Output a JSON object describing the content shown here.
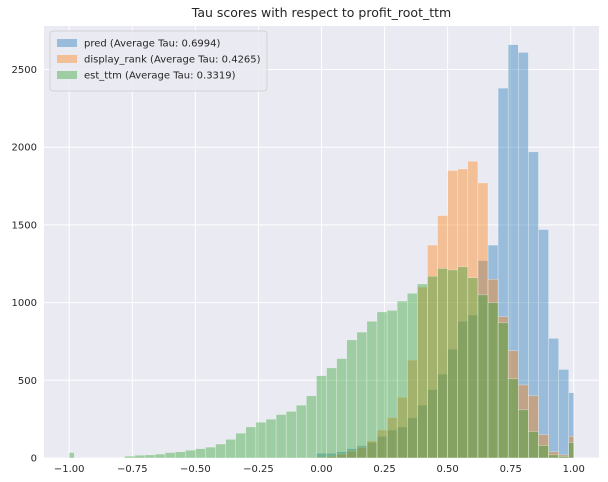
{
  "chart_data": {
    "type": "bar",
    "subtype": "overlaid-histogram",
    "title": "Tau scores with respect to profit_root_ttm",
    "xlabel": "",
    "ylabel": "",
    "xlim": [
      -1.1,
      1.1
    ],
    "ylim": [
      0,
      2780
    ],
    "grid": true,
    "legend_position": "top-left",
    "x_ticks": [
      -1.0,
      -0.75,
      -0.5,
      -0.25,
      0.0,
      0.25,
      0.5,
      0.75,
      1.0
    ],
    "x_tick_labels": [
      "−1.00",
      "−0.75",
      "−0.50",
      "−0.25",
      "0.00",
      "0.25",
      "0.50",
      "0.75",
      "1.00"
    ],
    "y_ticks": [
      0,
      500,
      1000,
      1500,
      2000,
      2500
    ],
    "y_tick_labels": [
      "0",
      "500",
      "1000",
      "1500",
      "2000",
      "2500"
    ],
    "bin_width": 0.04,
    "draw_order": [
      "pred",
      "display_rank",
      "est_ttm"
    ],
    "series": [
      {
        "name": "pred (Average Tau: 0.6994)",
        "color": "#1f77b4",
        "bins": [
          [
            -0.02,
            0.06,
            30
          ],
          [
            0.06,
            0.1,
            40
          ],
          [
            0.1,
            0.14,
            60
          ],
          [
            0.14,
            0.18,
            80
          ],
          [
            0.18,
            0.22,
            100
          ],
          [
            0.22,
            0.26,
            140
          ],
          [
            0.26,
            0.3,
            180
          ],
          [
            0.3,
            0.34,
            200
          ],
          [
            0.34,
            0.38,
            260
          ],
          [
            0.38,
            0.42,
            340
          ],
          [
            0.42,
            0.46,
            440
          ],
          [
            0.46,
            0.5,
            540
          ],
          [
            0.5,
            0.54,
            700
          ],
          [
            0.54,
            0.58,
            880
          ],
          [
            0.58,
            0.62,
            920
          ],
          [
            0.62,
            0.66,
            1270
          ],
          [
            0.66,
            0.7,
            1370
          ],
          [
            0.7,
            0.74,
            2380
          ],
          [
            0.74,
            0.78,
            2660
          ],
          [
            0.78,
            0.82,
            2610
          ],
          [
            0.82,
            0.86,
            1970
          ],
          [
            0.86,
            0.9,
            1470
          ],
          [
            0.9,
            0.94,
            770
          ],
          [
            0.94,
            0.98,
            570
          ],
          [
            0.98,
            1.0,
            420
          ]
        ]
      },
      {
        "name": "display_rank (Average Tau: 0.4265)",
        "color": "#ff7f0e",
        "bins": [
          [
            -0.02,
            0.02,
            5
          ],
          [
            0.02,
            0.06,
            12
          ],
          [
            0.06,
            0.1,
            25
          ],
          [
            0.1,
            0.14,
            45
          ],
          [
            0.14,
            0.18,
            70
          ],
          [
            0.18,
            0.22,
            110
          ],
          [
            0.22,
            0.26,
            180
          ],
          [
            0.26,
            0.3,
            260
          ],
          [
            0.3,
            0.34,
            390
          ],
          [
            0.34,
            0.38,
            630
          ],
          [
            0.38,
            0.42,
            1100
          ],
          [
            0.42,
            0.46,
            1370
          ],
          [
            0.46,
            0.5,
            1560
          ],
          [
            0.5,
            0.54,
            1850
          ],
          [
            0.54,
            0.58,
            1860
          ],
          [
            0.58,
            0.62,
            1910
          ],
          [
            0.62,
            0.66,
            1770
          ],
          [
            0.66,
            0.7,
            1150
          ],
          [
            0.7,
            0.74,
            910
          ],
          [
            0.74,
            0.78,
            690
          ],
          [
            0.78,
            0.82,
            470
          ],
          [
            0.82,
            0.86,
            400
          ],
          [
            0.86,
            0.9,
            150
          ],
          [
            0.9,
            0.94,
            40
          ],
          [
            0.94,
            0.98,
            20
          ],
          [
            0.98,
            1.0,
            140
          ]
        ]
      },
      {
        "name": "est_ttm (Average Tau: 0.3319)",
        "color": "#2ca02c",
        "bins": [
          [
            -1.0,
            -0.98,
            35
          ],
          [
            -0.78,
            -0.74,
            12
          ],
          [
            -0.74,
            -0.7,
            18
          ],
          [
            -0.7,
            -0.66,
            20
          ],
          [
            -0.66,
            -0.62,
            25
          ],
          [
            -0.62,
            -0.58,
            35
          ],
          [
            -0.58,
            -0.54,
            40
          ],
          [
            -0.54,
            -0.5,
            50
          ],
          [
            -0.5,
            -0.46,
            60
          ],
          [
            -0.46,
            -0.42,
            70
          ],
          [
            -0.42,
            -0.38,
            90
          ],
          [
            -0.38,
            -0.34,
            120
          ],
          [
            -0.34,
            -0.3,
            160
          ],
          [
            -0.3,
            -0.26,
            200
          ],
          [
            -0.26,
            -0.22,
            230
          ],
          [
            -0.22,
            -0.18,
            250
          ],
          [
            -0.18,
            -0.14,
            280
          ],
          [
            -0.14,
            -0.1,
            300
          ],
          [
            -0.1,
            -0.06,
            340
          ],
          [
            -0.06,
            -0.02,
            400
          ],
          [
            -0.02,
            0.02,
            530
          ],
          [
            0.02,
            0.06,
            580
          ],
          [
            0.06,
            0.1,
            640
          ],
          [
            0.1,
            0.14,
            760
          ],
          [
            0.14,
            0.18,
            810
          ],
          [
            0.18,
            0.22,
            880
          ],
          [
            0.22,
            0.26,
            940
          ],
          [
            0.26,
            0.3,
            950
          ],
          [
            0.3,
            0.34,
            1010
          ],
          [
            0.34,
            0.38,
            1060
          ],
          [
            0.38,
            0.42,
            1120
          ],
          [
            0.42,
            0.46,
            1170
          ],
          [
            0.46,
            0.5,
            1220
          ],
          [
            0.5,
            0.54,
            1210
          ],
          [
            0.54,
            0.58,
            1230
          ],
          [
            0.58,
            0.62,
            1160
          ],
          [
            0.62,
            0.66,
            1050
          ],
          [
            0.66,
            0.7,
            1000
          ],
          [
            0.7,
            0.74,
            870
          ],
          [
            0.74,
            0.78,
            510
          ],
          [
            0.78,
            0.82,
            310
          ],
          [
            0.82,
            0.86,
            170
          ],
          [
            0.86,
            0.9,
            80
          ],
          [
            0.9,
            0.94,
            20
          ],
          [
            0.94,
            0.98,
            10
          ],
          [
            0.98,
            1.0,
            100
          ]
        ]
      }
    ]
  }
}
